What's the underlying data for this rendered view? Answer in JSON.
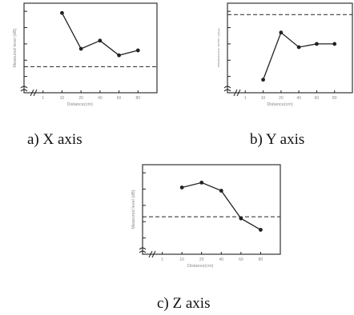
{
  "figure": {
    "captions": [
      "a) X axis",
      "b) Y axis",
      "c) Z axis"
    ]
  },
  "colors": {
    "ink": "#222222",
    "frame": "#333333",
    "faint": "#8a8a8a"
  },
  "chart_data": [
    {
      "type": "line",
      "title": "",
      "xlabel": "Distance(cm)",
      "ylabel": "Measured level (dB)",
      "legend": "",
      "x_ticks": [
        "1",
        "10",
        "20",
        "40",
        "60",
        "80"
      ],
      "y_ticks": [
        "",
        "",
        "",
        "",
        ""
      ],
      "grid": false,
      "xlim": [
        0,
        7
      ],
      "ylim": [
        0,
        11
      ],
      "series": [
        {
          "name": "",
          "x": [
            2,
            3,
            4,
            5,
            6
          ],
          "y": [
            9.8,
            5.4,
            6.4,
            4.6,
            5.2
          ]
        }
      ],
      "reference_line": 3.2
    },
    {
      "type": "line",
      "title": "",
      "xlabel": "Distance(cm)",
      "ylabel": "Measured level (dB)",
      "legend": "",
      "x_ticks": [
        "1",
        "10",
        "20",
        "40",
        "60",
        "80"
      ],
      "y_ticks": [
        "",
        "",
        "",
        "",
        ""
      ],
      "grid": false,
      "xlim": [
        0,
        7
      ],
      "ylim": [
        0,
        11
      ],
      "series": [
        {
          "name": "",
          "x": [
            2,
            3,
            4,
            5,
            6
          ],
          "y": [
            1.6,
            7.4,
            5.6,
            6.0,
            6.0
          ]
        }
      ],
      "reference_line": 9.6
    },
    {
      "type": "line",
      "title": "",
      "xlabel": "Distance(cm)",
      "ylabel": "Measured level (dB)",
      "legend": "",
      "x_ticks": [
        "1",
        "10",
        "20",
        "40",
        "60",
        "80"
      ],
      "y_ticks": [
        "",
        "",
        "",
        "",
        ""
      ],
      "grid": false,
      "xlim": [
        0,
        7
      ],
      "ylim": [
        0,
        11
      ],
      "series": [
        {
          "name": "",
          "x": [
            2,
            3,
            4,
            5,
            6
          ],
          "y": [
            8.2,
            8.8,
            7.8,
            4.4,
            3.0
          ]
        }
      ],
      "reference_line": 4.6
    }
  ]
}
